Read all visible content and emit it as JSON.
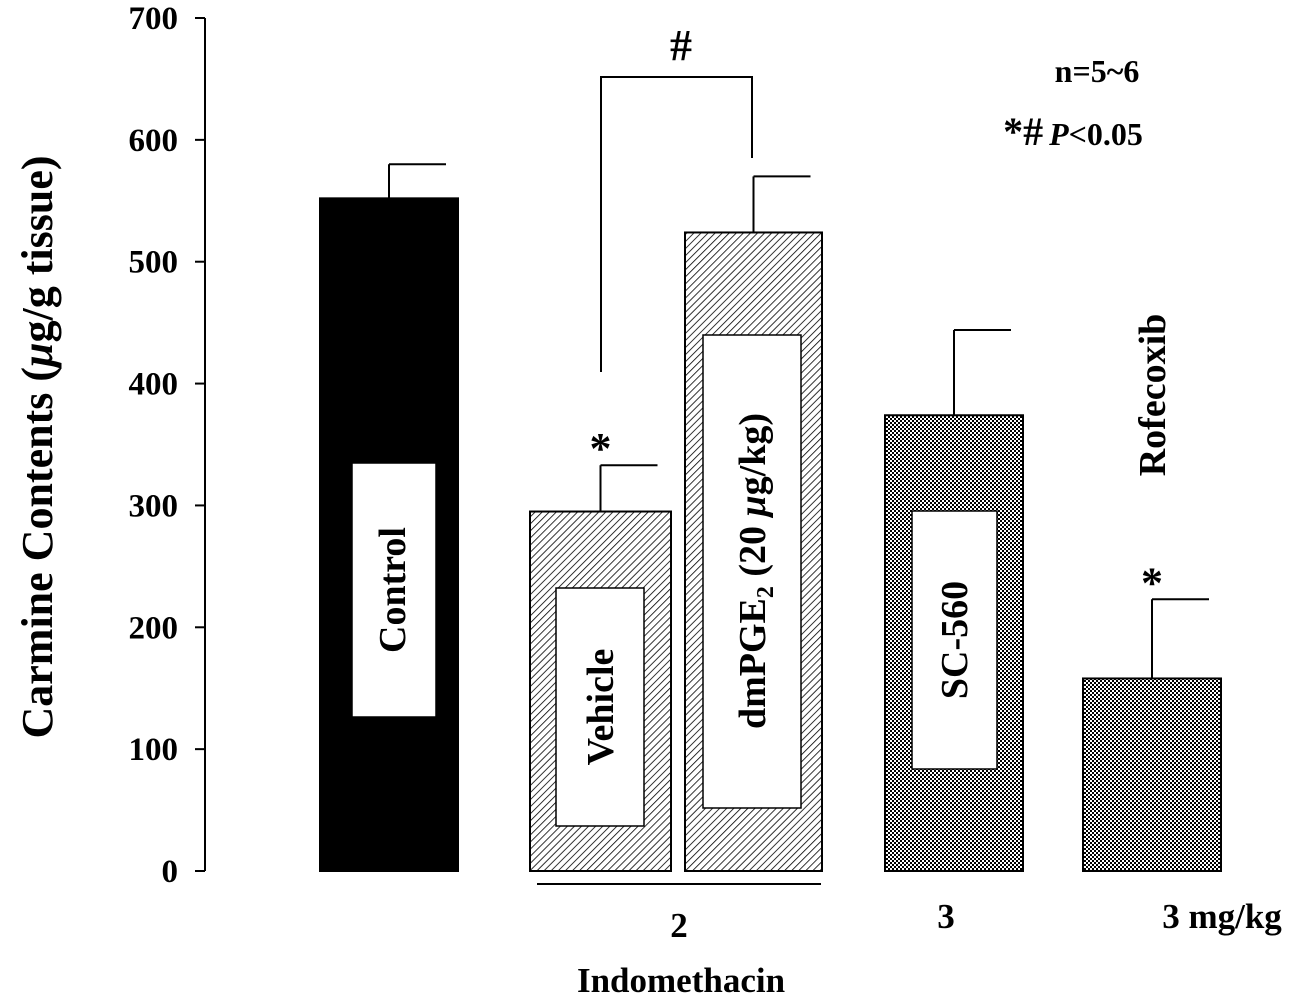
{
  "chart_data": {
    "type": "bar",
    "title": "",
    "xlabel": "",
    "ylabel_parts": [
      "Carmine Contents (",
      "μ",
      "g/g tissue)"
    ],
    "ylim": [
      0,
      700
    ],
    "yticks": [
      0,
      100,
      200,
      300,
      400,
      500,
      600,
      700
    ],
    "bars": [
      {
        "label": "Control",
        "value": 552,
        "error": 28,
        "fill": "solid",
        "sig": ""
      },
      {
        "label": "Vehicle",
        "value": 295,
        "error": 38,
        "fill": "hatch",
        "sig": "*"
      },
      {
        "label_parts": [
          "dmPGE",
          "2",
          " (20 ",
          "μ",
          "g/kg)"
        ],
        "value": 524,
        "error": 46,
        "fill": "hatch",
        "sig": ""
      },
      {
        "label": "SC-560",
        "value": 374,
        "error": 70,
        "fill": "dots",
        "sig": ""
      },
      {
        "label": "Rofecoxib",
        "value": 158,
        "error": 65,
        "fill": "dots",
        "sig": "*"
      }
    ],
    "group_labels": [
      "2",
      "3",
      "3 mg/kg"
    ],
    "group_title": "Indomethacin",
    "bracket_label": "#",
    "annotations": {
      "n": "n=5~6",
      "sig_marks": "*#",
      "p_label": "P",
      "p_value": "<0.05"
    },
    "colors": {
      "solid": "#000000",
      "pattern": "#000000",
      "background": "#ffffff"
    },
    "grid": false,
    "legend": "none"
  }
}
